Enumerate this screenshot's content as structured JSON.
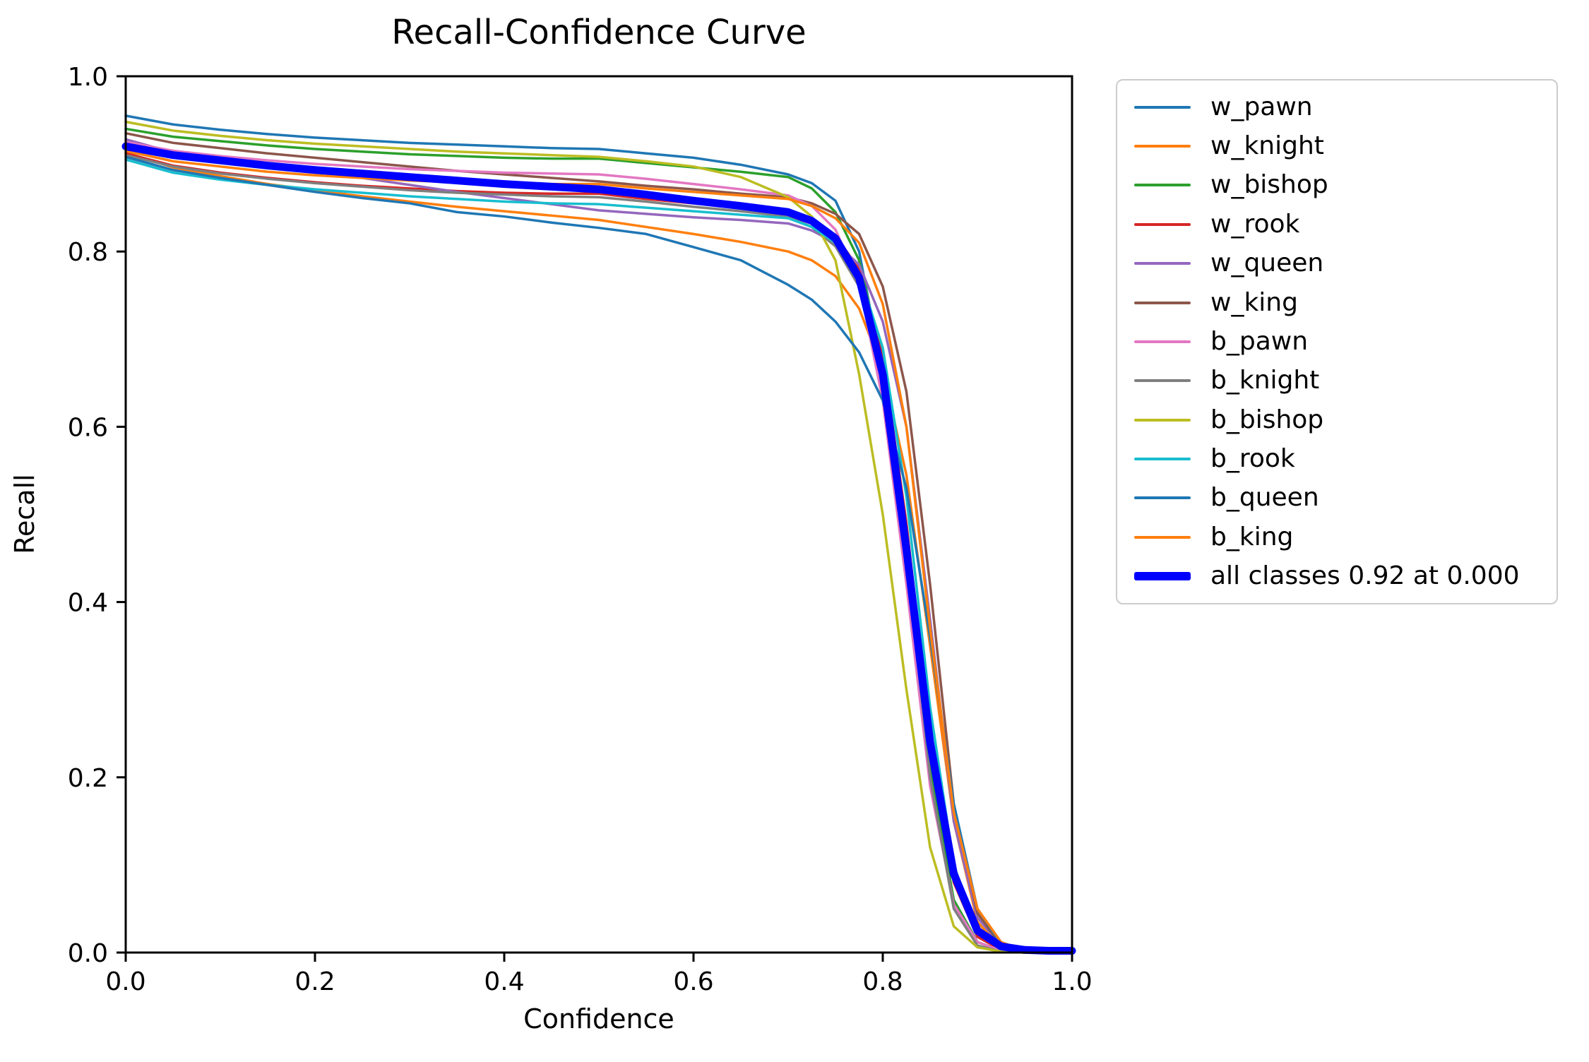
{
  "figure": {
    "title": "Recall-Confidence Curve"
  },
  "chart_data": {
    "type": "line",
    "title": "Recall-Confidence Curve",
    "xlabel": "Confidence",
    "ylabel": "Recall",
    "xlim": [
      0.0,
      1.0
    ],
    "ylim": [
      0.0,
      1.0
    ],
    "xticks": [
      "0.0",
      "0.2",
      "0.4",
      "0.6",
      "0.8",
      "1.0"
    ],
    "yticks": [
      "0.0",
      "0.2",
      "0.4",
      "0.6",
      "0.8",
      "1.0"
    ],
    "grid": false,
    "legend_position": "outside-upper-right",
    "x": [
      0.0,
      0.05,
      0.1,
      0.15,
      0.2,
      0.25,
      0.3,
      0.35,
      0.4,
      0.45,
      0.5,
      0.55,
      0.6,
      0.65,
      0.7,
      0.725,
      0.75,
      0.775,
      0.8,
      0.825,
      0.85,
      0.875,
      0.9,
      0.925,
      0.95,
      0.975,
      1.0
    ],
    "series": [
      {
        "name": "w_pawn",
        "color": "#1f77b4",
        "lw": 3.5,
        "y": [
          0.955,
          0.945,
          0.939,
          0.934,
          0.93,
          0.927,
          0.924,
          0.922,
          0.92,
          0.918,
          0.917,
          0.912,
          0.907,
          0.899,
          0.888,
          0.878,
          0.858,
          0.8,
          0.66,
          0.44,
          0.2,
          0.06,
          0.012,
          0.002,
          0,
          0,
          0
        ]
      },
      {
        "name": "w_knight",
        "color": "#ff7f0e",
        "lw": 3.5,
        "y": [
          0.913,
          0.896,
          0.886,
          0.877,
          0.87,
          0.863,
          0.857,
          0.851,
          0.846,
          0.841,
          0.836,
          0.828,
          0.82,
          0.811,
          0.8,
          0.79,
          0.772,
          0.735,
          0.665,
          0.545,
          0.35,
          0.15,
          0.035,
          0.005,
          0,
          0,
          0
        ]
      },
      {
        "name": "w_bishop",
        "color": "#2ca02c",
        "lw": 3.5,
        "y": [
          0.94,
          0.931,
          0.926,
          0.921,
          0.917,
          0.914,
          0.911,
          0.909,
          0.907,
          0.906,
          0.906,
          0.901,
          0.896,
          0.891,
          0.885,
          0.872,
          0.845,
          0.79,
          0.67,
          0.46,
          0.21,
          0.06,
          0.012,
          0.002,
          0,
          0,
          0
        ]
      },
      {
        "name": "w_rook",
        "color": "#d62728",
        "lw": 3.5,
        "y": [
          0.912,
          0.898,
          0.89,
          0.884,
          0.879,
          0.875,
          0.872,
          0.869,
          0.867,
          0.866,
          0.866,
          0.86,
          0.855,
          0.851,
          0.846,
          0.836,
          0.818,
          0.78,
          0.68,
          0.49,
          0.25,
          0.08,
          0.018,
          0.003,
          0,
          0,
          0
        ]
      },
      {
        "name": "w_queen",
        "color": "#9467bd",
        "lw": 3.5,
        "y": [
          0.928,
          0.913,
          0.905,
          0.898,
          0.892,
          0.884,
          0.876,
          0.868,
          0.861,
          0.854,
          0.847,
          0.843,
          0.839,
          0.836,
          0.832,
          0.824,
          0.81,
          0.785,
          0.72,
          0.6,
          0.38,
          0.15,
          0.04,
          0.008,
          0.001,
          0,
          0
        ]
      },
      {
        "name": "w_king",
        "color": "#8c564b",
        "lw": 3.5,
        "y": [
          0.935,
          0.924,
          0.918,
          0.912,
          0.907,
          0.902,
          0.897,
          0.892,
          0.888,
          0.884,
          0.88,
          0.875,
          0.871,
          0.866,
          0.862,
          0.855,
          0.843,
          0.82,
          0.76,
          0.64,
          0.42,
          0.17,
          0.045,
          0.008,
          0.001,
          0,
          0
        ]
      },
      {
        "name": "b_pawn",
        "color": "#e377c2",
        "lw": 3.5,
        "y": [
          0.925,
          0.915,
          0.909,
          0.904,
          0.9,
          0.897,
          0.894,
          0.892,
          0.89,
          0.889,
          0.888,
          0.883,
          0.877,
          0.871,
          0.864,
          0.852,
          0.825,
          0.765,
          0.63,
          0.42,
          0.19,
          0.055,
          0.012,
          0.002,
          0,
          0,
          0
        ]
      },
      {
        "name": "b_knight",
        "color": "#7f7f7f",
        "lw": 3.5,
        "y": [
          0.91,
          0.897,
          0.889,
          0.883,
          0.878,
          0.874,
          0.87,
          0.867,
          0.865,
          0.863,
          0.862,
          0.857,
          0.851,
          0.846,
          0.84,
          0.828,
          0.806,
          0.76,
          0.65,
          0.45,
          0.2,
          0.05,
          0.008,
          0.001,
          0,
          0,
          0
        ]
      },
      {
        "name": "b_bishop",
        "color": "#bcbd22",
        "lw": 3.5,
        "y": [
          0.948,
          0.938,
          0.932,
          0.927,
          0.923,
          0.92,
          0.917,
          0.914,
          0.912,
          0.91,
          0.908,
          0.903,
          0.897,
          0.885,
          0.862,
          0.84,
          0.79,
          0.66,
          0.5,
          0.3,
          0.12,
          0.03,
          0.006,
          0.001,
          0,
          0,
          0
        ]
      },
      {
        "name": "b_rook",
        "color": "#17becf",
        "lw": 3.5,
        "y": [
          0.905,
          0.89,
          0.882,
          0.876,
          0.871,
          0.867,
          0.863,
          0.86,
          0.857,
          0.855,
          0.854,
          0.85,
          0.846,
          0.842,
          0.838,
          0.828,
          0.81,
          0.775,
          0.69,
          0.52,
          0.28,
          0.1,
          0.025,
          0.004,
          0,
          0,
          0
        ]
      },
      {
        "name": "b_queen",
        "color": "#1f77b4",
        "lw": 3.5,
        "y": [
          0.908,
          0.893,
          0.884,
          0.876,
          0.868,
          0.861,
          0.855,
          0.845,
          0.84,
          0.833,
          0.827,
          0.82,
          0.805,
          0.79,
          0.762,
          0.745,
          0.72,
          0.685,
          0.63,
          0.53,
          0.36,
          0.17,
          0.05,
          0.01,
          0.001,
          0,
          0
        ]
      },
      {
        "name": "b_king",
        "color": "#ff7f0e",
        "lw": 3.5,
        "y": [
          0.915,
          0.903,
          0.897,
          0.891,
          0.887,
          0.884,
          0.881,
          0.879,
          0.878,
          0.877,
          0.877,
          0.872,
          0.868,
          0.864,
          0.86,
          0.852,
          0.838,
          0.81,
          0.74,
          0.6,
          0.37,
          0.16,
          0.05,
          0.012,
          0.002,
          0,
          0
        ]
      },
      {
        "name": "all classes 0.92 at 0.000",
        "color": "#0000ff",
        "lw": 11,
        "y": [
          0.92,
          0.91,
          0.904,
          0.898,
          0.893,
          0.889,
          0.885,
          0.881,
          0.877,
          0.874,
          0.871,
          0.865,
          0.858,
          0.852,
          0.845,
          0.835,
          0.815,
          0.77,
          0.66,
          0.46,
          0.24,
          0.09,
          0.025,
          0.007,
          0.003,
          0.002,
          0.002
        ]
      }
    ]
  }
}
